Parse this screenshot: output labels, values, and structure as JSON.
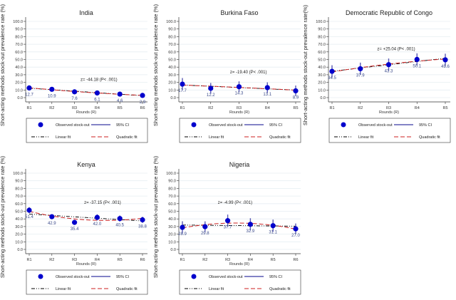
{
  "chart_data": [
    {
      "type": "scatter",
      "title": "India",
      "xlabel": "Rounds (R)",
      "ylabel": "Short-acting methods stock-out prevalence rate (%)",
      "categories": [
        "R1",
        "R2",
        "R3",
        "R4",
        "R5",
        "R6"
      ],
      "values": [
        12.7,
        10.9,
        7.6,
        6.1,
        4.6,
        2.9
      ],
      "labels": [
        "12.7",
        "10.9",
        "7.6",
        "6.1",
        "4.6",
        "2.9"
      ],
      "ci_halfwidth": [
        3,
        2.5,
        2,
        2,
        1.5,
        1.5
      ],
      "annotation": "z= -44.18 (P< .001)"
    },
    {
      "type": "scatter",
      "title": "Burkina Faso",
      "xlabel": "Rounds (R)",
      "ylabel": "Short-acting methods stock-out prevalence rate (%)",
      "categories": [
        "R1",
        "R2",
        "R3",
        "R4",
        "R5"
      ],
      "values": [
        17.7,
        12.2,
        14.3,
        13.1,
        8.9
      ],
      "labels": [
        "17.7",
        "12.2",
        "14.3",
        "13.1",
        "8.9"
      ],
      "ci_halfwidth": [
        8,
        7,
        7,
        7,
        7
      ],
      "annotation": "z= -19.40 (P< .001)"
    },
    {
      "type": "scatter",
      "title": "Democratic Republic of Congo",
      "xlabel": "Rounds (R)",
      "ylabel": "Short-acting methods stock-out prevalence rate(%)",
      "categories": [
        "R1",
        "R2",
        "R3",
        "R4",
        "R5"
      ],
      "values": [
        34.5,
        37.9,
        43.3,
        50.1,
        49.6
      ],
      "labels": [
        "34.5",
        "37.9",
        "43.3",
        "50.1",
        "49.6"
      ],
      "ci_halfwidth": [
        8,
        8,
        8,
        8,
        8
      ],
      "annotation": "z= +25.04 (P< .001)"
    },
    {
      "type": "scatter",
      "title": "Kenya",
      "xlabel": "Rounds (R)",
      "ylabel": "Short-acting methods stock-out prevalence rate (%)",
      "categories": [
        "R1",
        "R2",
        "R3",
        "R4",
        "R5",
        "R6"
      ],
      "values": [
        51.4,
        42.9,
        35.4,
        42.0,
        40.5,
        38.8
      ],
      "labels": [
        "51.4",
        "42.9",
        "35.4",
        "42.0",
        "40.5",
        "38.8"
      ],
      "ci_halfwidth": [
        4,
        3,
        3,
        4,
        4,
        4
      ],
      "annotation": "z= -37.15 (P< .001)"
    },
    {
      "type": "scatter",
      "title": "Nigeria",
      "xlabel": "Rounds (R)",
      "ylabel": "Short-acting methods stock-out prevalence rate (%)",
      "categories": [
        "R1",
        "R2",
        "R3",
        "R4",
        "R5",
        "R6"
      ],
      "values": [
        28.9,
        29.8,
        37.7,
        32.9,
        31.1,
        27.0
      ],
      "labels": [
        "28.9",
        "29.8",
        "37.7",
        "32.9",
        "31.1",
        "27.0"
      ],
      "ci_halfwidth": [
        8,
        7,
        8,
        8,
        8,
        7
      ],
      "annotation": "z= -4.99 (P< .001)"
    }
  ],
  "axis": {
    "ylim": [
      0,
      100
    ],
    "yticks": [
      "0.0",
      "10.0",
      "20.0",
      "30.0",
      "40.0",
      "50.0",
      "60.0",
      "70.0",
      "80.0",
      "90.0",
      "100.0"
    ],
    "grid": true
  },
  "legend": {
    "observed": "Observed stock-out",
    "ci": "95% CI",
    "linear": "Linear fit",
    "quadratic": "Quadratic fit",
    "placement": "bottom"
  },
  "colors": {
    "point": "#0000cc",
    "ci": "#5a5ab4",
    "linear": "#000000",
    "quadratic": "#cc2222",
    "grid": "#e6edf2",
    "label": "#3a4a8a"
  }
}
